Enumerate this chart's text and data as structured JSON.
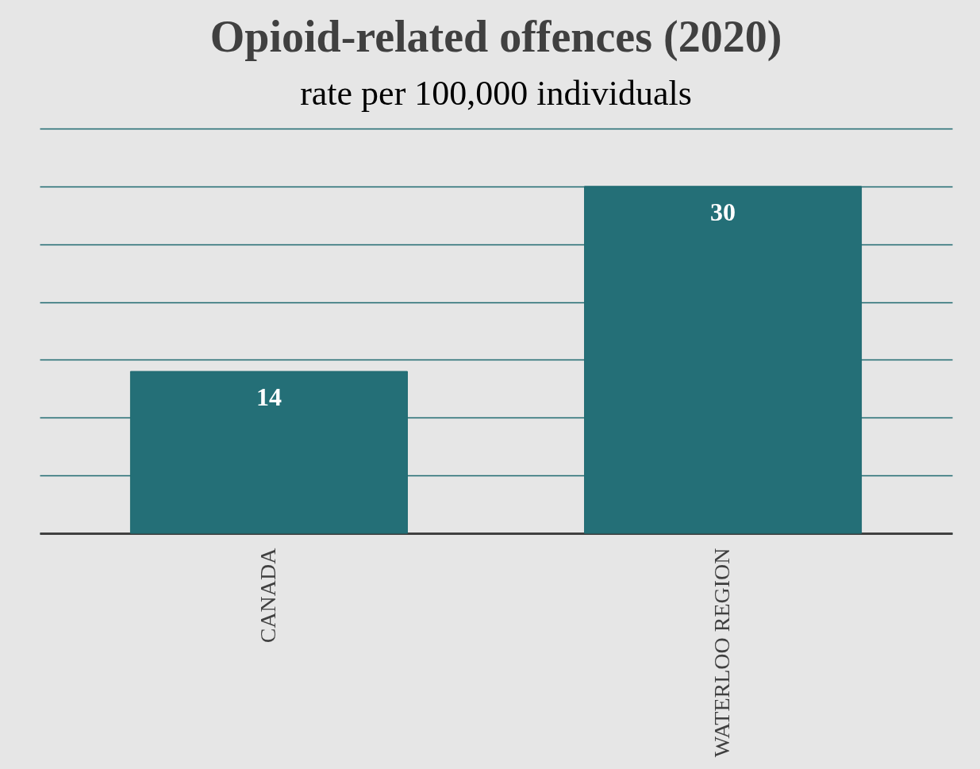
{
  "chart_data": {
    "type": "bar",
    "title": "Opioid-related offences (2020)",
    "subtitle": "rate per 100,000 individuals",
    "categories": [
      "CANADA",
      "WATERLOO REGION"
    ],
    "values": [
      14,
      30
    ],
    "color": "#246f77",
    "ylim": [
      0,
      35
    ],
    "yticks": [
      {
        "value": 0,
        "label": null
      },
      {
        "value": 5,
        "label": null
      },
      {
        "value": 10,
        "label": null
      },
      {
        "value": 15,
        "label": null
      },
      {
        "value": 20,
        "label": null
      },
      {
        "value": 25,
        "label": null
      },
      {
        "value": 30,
        "label": null
      },
      {
        "value": 35,
        "label": null
      }
    ],
    "tick_labels": "x",
    "grid": "y",
    "data_labels": true
  }
}
